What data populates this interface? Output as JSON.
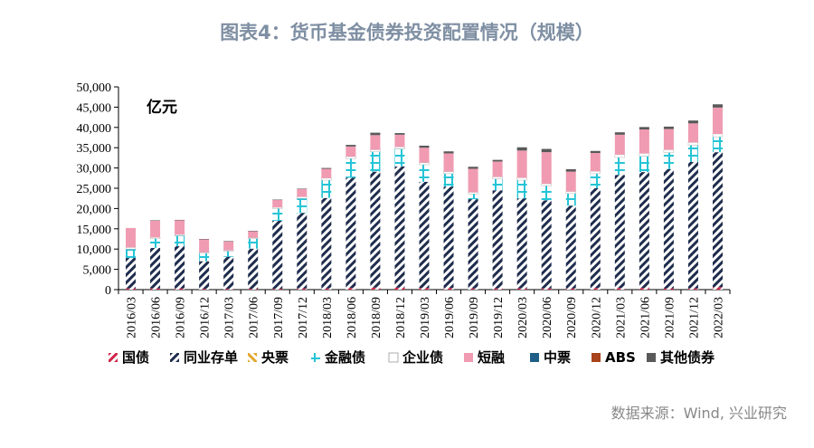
{
  "page_title": "图表4：货币基金债券投资配置情况（规模）",
  "source": "数据来源：Wind, 兴业研究",
  "chart_data": {
    "type": "bar",
    "stacked": true,
    "unit_label": "亿元",
    "ylim": [
      0,
      50000
    ],
    "yticks": [
      "0",
      "5,000",
      "10,000",
      "15,000",
      "20,000",
      "25,000",
      "30,000",
      "35,000",
      "40,000",
      "45,000",
      "50,000"
    ],
    "grid": false,
    "legend_position": "bottom",
    "categories": [
      "2016/03",
      "2016/06",
      "2016/09",
      "2016/12",
      "2017/03",
      "2017/06",
      "2017/09",
      "2017/12",
      "2018/03",
      "2018/06",
      "2018/09",
      "2018/12",
      "2019/03",
      "2019/06",
      "2019/09",
      "2019/12",
      "2020/03",
      "2020/06",
      "2020/09",
      "2020/12",
      "2021/03",
      "2021/06",
      "2021/09",
      "2021/12",
      "2022/03"
    ],
    "series": [
      {
        "name": "国债",
        "pattern": "hatch-red",
        "color": "#d0284a",
        "values": [
          300,
          300,
          300,
          200,
          200,
          200,
          200,
          300,
          300,
          400,
          500,
          500,
          400,
          400,
          300,
          300,
          300,
          300,
          300,
          400,
          400,
          400,
          300,
          300,
          600
        ]
      },
      {
        "name": "同业存单",
        "pattern": "hatch-navy",
        "color": "#1f2d4d",
        "values": [
          7500,
          10000,
          10400,
          6800,
          7900,
          9900,
          16800,
          18600,
          22300,
          27200,
          28600,
          29900,
          26200,
          25000,
          22000,
          24200,
          22200,
          21700,
          20400,
          24600,
          27900,
          28600,
          29400,
          31200,
          33300
        ]
      },
      {
        "name": "央票",
        "pattern": "hatch-gold",
        "color": "#e3a72f",
        "values": [
          0,
          0,
          0,
          0,
          0,
          0,
          0,
          0,
          0,
          0,
          0,
          0,
          0,
          0,
          0,
          0,
          0,
          0,
          0,
          0,
          0,
          0,
          0,
          0,
          0
        ]
      },
      {
        "name": "金融债",
        "pattern": "cross-cyan",
        "color": "#25c4d6",
        "values": [
          2200,
          2300,
          2600,
          2000,
          1400,
          2500,
          3000,
          3600,
          4400,
          4700,
          4900,
          4300,
          4200,
          3200,
          1300,
          2800,
          4500,
          3600,
          3000,
          3600,
          4300,
          3900,
          4100,
          4100,
          3800
        ]
      },
      {
        "name": "企业债",
        "pattern": "solid",
        "color": "#ffffff",
        "values": [
          400,
          300,
          300,
          200,
          200,
          200,
          300,
          400,
          500,
          500,
          500,
          500,
          500,
          500,
          400,
          500,
          600,
          500,
          500,
          600,
          700,
          700,
          700,
          700,
          700
        ]
      },
      {
        "name": "短融",
        "pattern": "solid",
        "color": "#f09bb2",
        "values": [
          4800,
          4100,
          3500,
          3200,
          2200,
          1600,
          1800,
          1900,
          2300,
          2500,
          3600,
          3000,
          3700,
          4500,
          5800,
          3800,
          6700,
          7800,
          4900,
          4500,
          4900,
          5900,
          5100,
          4700,
          6500
        ]
      },
      {
        "name": "中票",
        "pattern": "solid",
        "color": "#1f5f87",
        "values": [
          0,
          0,
          0,
          0,
          0,
          0,
          0,
          0,
          0,
          0,
          0,
          0,
          0,
          0,
          0,
          0,
          0,
          0,
          0,
          0,
          0,
          0,
          0,
          0,
          0
        ]
      },
      {
        "name": "ABS",
        "pattern": "solid",
        "color": "#a8431b",
        "values": [
          0,
          0,
          0,
          0,
          0,
          0,
          0,
          0,
          0,
          0,
          0,
          0,
          0,
          0,
          0,
          0,
          0,
          0,
          0,
          0,
          0,
          0,
          0,
          0,
          0
        ]
      },
      {
        "name": "其他债券",
        "pattern": "solid",
        "color": "#595959",
        "values": [
          0,
          100,
          100,
          100,
          100,
          100,
          100,
          100,
          200,
          400,
          600,
          400,
          500,
          500,
          500,
          400,
          800,
          800,
          600,
          500,
          600,
          600,
          600,
          700,
          800
        ]
      }
    ]
  }
}
